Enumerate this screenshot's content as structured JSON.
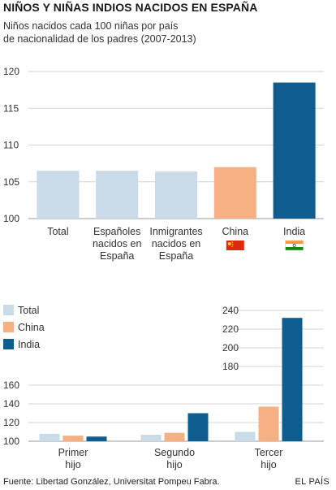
{
  "title": "NIÑOS Y NIÑAS INDIOS NACIDOS EN ESPAÑA",
  "subtitle_line1": "Niños nacidos cada 100 niñas por país",
  "subtitle_line2": "de nacionalidad de los padres (2007-2013)",
  "footer": {
    "source": "Fuente: Libertad González, Universitat Pompeu Fabra.",
    "brand": "EL PAÍS"
  },
  "colors": {
    "total": "#c9dbe9",
    "china": "#f5b183",
    "india": "#0f5c8f",
    "grid": "#d4d4d4",
    "axis": "#9a9a9a",
    "flag_china_red": "#de2910",
    "flag_china_star": "#ffde00",
    "flag_india_saffron": "#ff9933",
    "flag_india_green": "#138808",
    "flag_india_wheel": "#000080"
  },
  "chart_data": [
    {
      "type": "bar",
      "title": "",
      "xlabel": "",
      "ylabel": "",
      "ylim": [
        100,
        122
      ],
      "yticks": [
        100,
        105,
        110,
        115,
        120
      ],
      "grid": true,
      "categories": [
        {
          "lines": [
            "Total"
          ],
          "value": 106.5,
          "color_key": "total",
          "flag": ""
        },
        {
          "lines": [
            "Españoles",
            "nacidos en",
            "España"
          ],
          "value": 106.5,
          "color_key": "total",
          "flag": ""
        },
        {
          "lines": [
            "Inmigrantes",
            "nacidos en",
            "España"
          ],
          "value": 106.4,
          "color_key": "total",
          "flag": "flag-china-none"
        },
        {
          "lines": [
            "China"
          ],
          "value": 107.0,
          "color_key": "china",
          "flag": "china-flag-icon"
        },
        {
          "lines": [
            "India"
          ],
          "value": 118.5,
          "color_key": "india",
          "flag": "india-flag-icon"
        }
      ]
    },
    {
      "type": "bar",
      "title": "",
      "xlabel": "",
      "ylabel": "",
      "ylim": [
        100,
        245
      ],
      "grid": true,
      "legend_position": "top-left",
      "series": [
        {
          "name": "Total",
          "color_key": "total",
          "values": [
            108,
            107,
            110
          ]
        },
        {
          "name": "China",
          "color_key": "china",
          "values": [
            106,
            109,
            137
          ]
        },
        {
          "name": "India",
          "color_key": "india",
          "values": [
            105,
            130,
            232
          ]
        }
      ],
      "categories": [
        {
          "lines": [
            "Primer",
            "hijo"
          ]
        },
        {
          "lines": [
            "Segundo",
            "hijo"
          ]
        },
        {
          "lines": [
            "Tercer",
            "hijo"
          ]
        }
      ],
      "yticks_low": [
        100,
        120,
        140,
        160
      ],
      "yticks_high": [
        180,
        200,
        220,
        240
      ]
    }
  ]
}
